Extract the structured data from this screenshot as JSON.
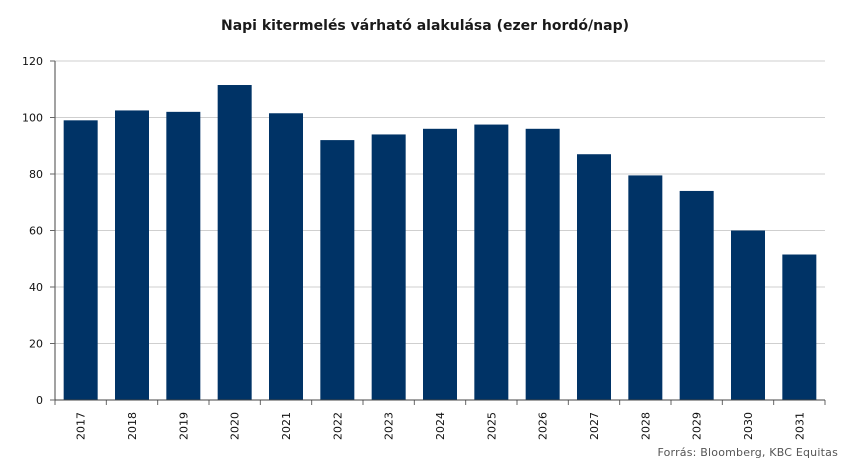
{
  "chart_data": {
    "type": "bar",
    "title": "Napi kitermelés várható alakulása (ezer hordó/nap)",
    "xlabel": "",
    "ylabel": "",
    "categories": [
      "2017",
      "2018",
      "2019",
      "2020",
      "2021",
      "2022",
      "2023",
      "2024",
      "2025",
      "2026",
      "2027",
      "2028",
      "2029",
      "2030",
      "2031"
    ],
    "values": [
      99,
      102.5,
      102,
      111.5,
      101.5,
      92,
      94,
      96,
      97.5,
      96,
      87,
      79.5,
      74,
      60,
      51.5
    ],
    "ylim": [
      0,
      120
    ],
    "yticks": [
      0,
      20,
      40,
      60,
      80,
      100,
      120
    ],
    "grid": true,
    "bar_color": "#003366",
    "source": "Forrás: Bloomberg, KBC Equitas"
  }
}
